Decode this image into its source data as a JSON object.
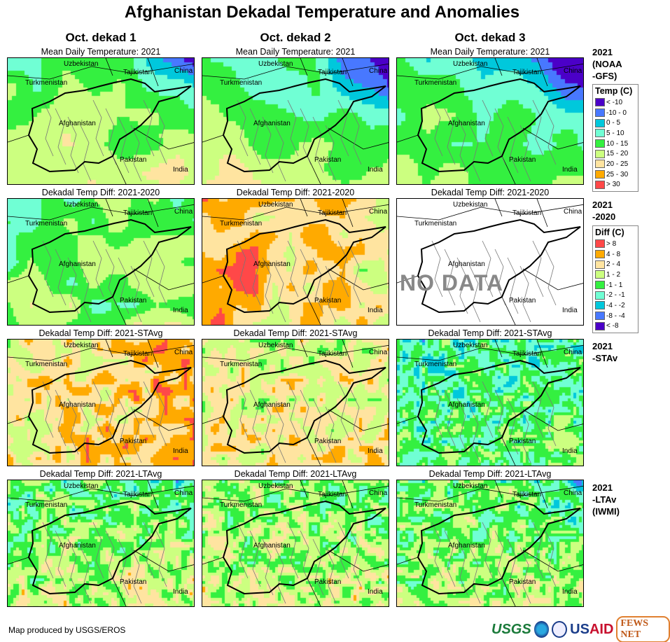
{
  "title": "Afghanistan Dekadal Temperature and Anomalies",
  "columns": [
    "Oct. dekad 1",
    "Oct. dekad 2",
    "Oct. dekad 3"
  ],
  "rows": [
    {
      "panel_title": "Mean Daily Temperature: 2021",
      "row_label": [
        "2021",
        "(NOAA",
        "-GFS)"
      ],
      "legend": "temp"
    },
    {
      "panel_title": "Dekadal Temp Diff: 2021-2020",
      "row_label": [
        "2021",
        "-2020"
      ],
      "legend": "diff"
    },
    {
      "panel_title": "Dekadal Temp Diff: 2021-STAvg",
      "row_label": [
        "2021",
        "-STAv"
      ]
    },
    {
      "panel_title": "Dekadal Temp Diff: 2021-LTAvg",
      "row_label": [
        "2021",
        "-LTAv",
        "(IWMI)"
      ]
    }
  ],
  "map_labels": {
    "uzbekistan": "Uzbekistan",
    "tajikistan": "Tajikistan",
    "china": "China",
    "turkmenistan": "Turkmenistan",
    "afghanistan": "Afghanistan",
    "pakistan": "Pakistan",
    "india": "India"
  },
  "no_data_text": "NO DATA",
  "legend_temp": {
    "title": "Temp (C)",
    "items": [
      {
        "label": "< -10",
        "color": "#4b00c8"
      },
      {
        "label": "-10 - 0",
        "color": "#4878ff"
      },
      {
        "label": "0 - 5",
        "color": "#00c8dc"
      },
      {
        "label": "5 - 10",
        "color": "#70ffd4"
      },
      {
        "label": "10 - 15",
        "color": "#34f040"
      },
      {
        "label": "15 - 20",
        "color": "#ccff80"
      },
      {
        "label": "20 - 25",
        "color": "#ffe4a0"
      },
      {
        "label": "25 - 30",
        "color": "#ffaa00"
      },
      {
        "label": "> 30",
        "color": "#ff4848"
      }
    ]
  },
  "legend_diff": {
    "title": "Diff (C)",
    "items": [
      {
        "label": "> 8",
        "color": "#ff4848"
      },
      {
        "label": "4 - 8",
        "color": "#ffaa00"
      },
      {
        "label": "2 - 4",
        "color": "#ffe4a0"
      },
      {
        "label": "1 - 2",
        "color": "#ccff80"
      },
      {
        "label": "-1 - 1",
        "color": "#34f040"
      },
      {
        "label": "-2 - -1",
        "color": "#70ffd4"
      },
      {
        "label": "-4 - -2",
        "color": "#00c8dc"
      },
      {
        "label": "-8 - -4",
        "color": "#4878ff"
      },
      {
        "label": "< -8",
        "color": "#4b00c8"
      }
    ]
  },
  "footer": "Map produced by USGS/EROS",
  "logos": [
    "USGS",
    "NOAA",
    "USAID",
    "FEWS NET"
  ]
}
